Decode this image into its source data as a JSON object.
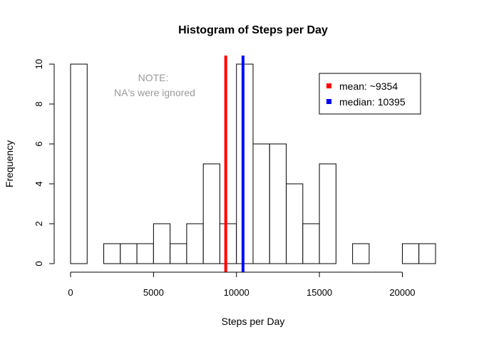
{
  "chart_data": {
    "type": "bar",
    "title": "Histogram of Steps per Day",
    "xlabel": "Steps per Day",
    "ylabel": "Frequency",
    "bin_width": 1000,
    "x_start": 0,
    "values": [
      10,
      0,
      1,
      1,
      1,
      2,
      1,
      2,
      5,
      2,
      10,
      6,
      6,
      4,
      2,
      5,
      0,
      1,
      0,
      0,
      1,
      1
    ],
    "xlim": [
      0,
      22000
    ],
    "ylim": [
      0,
      10
    ],
    "x_ticks": [
      0,
      5000,
      10000,
      15000,
      20000
    ],
    "y_ticks": [
      0,
      2,
      4,
      6,
      8,
      10
    ],
    "vlines": [
      {
        "name": "mean",
        "value": 9354,
        "color": "#ff0000"
      },
      {
        "name": "median",
        "value": 10395,
        "color": "#0000ff"
      }
    ],
    "legend": {
      "position": "top-right",
      "entries": [
        {
          "label": "mean: ~9354",
          "color": "#ff0000"
        },
        {
          "label": "median: 10395",
          "color": "#0000ff"
        }
      ]
    },
    "annotation": [
      "NOTE:",
      "NA's were ignored"
    ],
    "grid": false
  }
}
